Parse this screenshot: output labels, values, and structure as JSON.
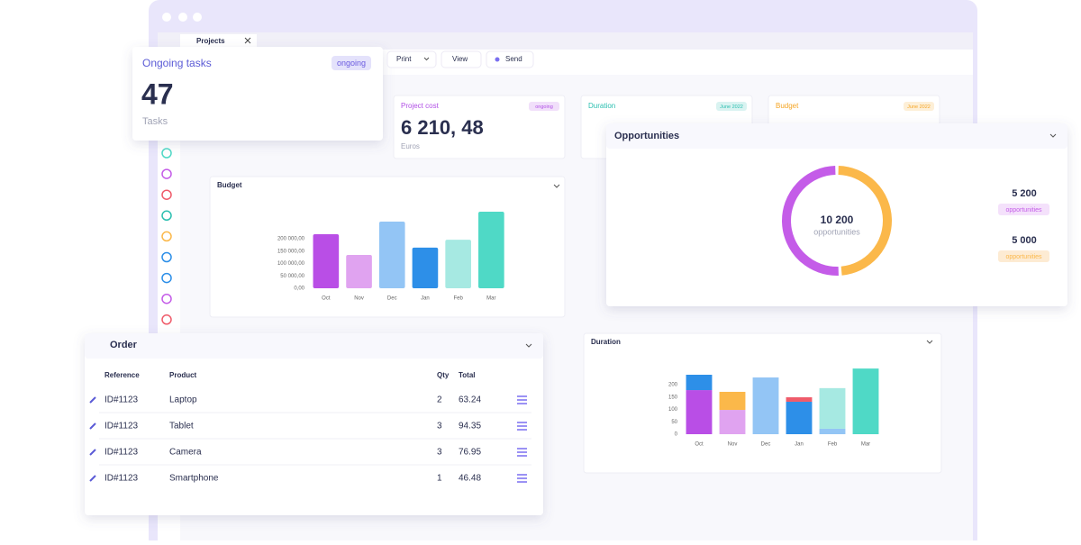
{
  "window": {
    "tab": "Projects"
  },
  "toolbar": {
    "buttons": [
      "Print",
      "View",
      "Send"
    ]
  },
  "ongoing_tasks": {
    "title": "Ongoing tasks",
    "badge": "ongoing",
    "value": 47,
    "unit": "Tasks"
  },
  "kpis": [
    {
      "title": "Project cost",
      "badge": "ongoing",
      "value": "6 210, 48",
      "unit": "Euros",
      "color": "#b14fe6"
    },
    {
      "title": "Duration",
      "badge": "June 2022",
      "color": "#2bbfb0"
    },
    {
      "title": "Budget",
      "badge": "June 2022",
      "color": "#f5a524"
    }
  ],
  "budget_chart": {
    "type": "bar",
    "title": "Budget",
    "categories": [
      "Oct",
      "Nov",
      "Dec",
      "Jan",
      "Feb",
      "Mar"
    ],
    "values": [
      218000,
      134500,
      269000,
      164000,
      196000,
      309000
    ],
    "colors": [
      "#b94ee6",
      "#e0a3f0",
      "#93c5f5",
      "#2d8fe8",
      "#a6e9e2",
      "#4fd9c6"
    ],
    "ylim": [
      0,
      320000
    ],
    "yticks": [
      {
        "value": 0,
        "label": "0,00"
      },
      {
        "value": 50000,
        "label": "50 000,00"
      },
      {
        "value": 100000,
        "label": "100 000,00"
      },
      {
        "value": 150000,
        "label": "150 000,00"
      },
      {
        "value": 200000,
        "label": "200 000,00"
      }
    ]
  },
  "duration_chart": {
    "type": "stacked_bar",
    "title": "Duration",
    "categories": [
      "Oct",
      "Nov",
      "Dec",
      "Jan",
      "Feb",
      "Mar"
    ],
    "series": [
      {
        "colors": [
          "#b94ee6",
          "#e0a3f0",
          "#93c5f5",
          "#2d8fe8",
          "#93c5f5",
          "#4fd9c6"
        ],
        "values": [
          178,
          98,
          229,
          131,
          22,
          265
        ]
      },
      {
        "colors": [
          "#2d8fe8",
          "#fbb84a",
          "#93c5f5",
          "#ef5b6a",
          "#a6e9e2",
          "#4fd9c6"
        ],
        "values": [
          62,
          73,
          null,
          18,
          164,
          null
        ]
      }
    ],
    "ylim": [
      0,
      280
    ],
    "yticks": [
      0,
      50,
      100,
      150,
      200
    ]
  },
  "opportunities": {
    "type": "donut",
    "title": "Opportunities",
    "total": {
      "value": 10200,
      "label": "10 200"
    },
    "caption": "opportunities",
    "values": [
      5200,
      5000
    ],
    "value_labels": [
      "5 200",
      "5 000"
    ],
    "labels": [
      "opportunities",
      "opportunities"
    ],
    "colors": [
      "#c45ce8",
      "#fbb84a"
    ],
    "badge_colors": [
      "#f4e1fb",
      "#fdebd3"
    ]
  },
  "order": {
    "title": "Order",
    "columns": [
      "Reference",
      "Product",
      "Qty",
      "Total"
    ],
    "rows": [
      [
        "ID#1123",
        "Laptop",
        2,
        63.24
      ],
      [
        "ID#1123",
        "Tablet",
        3,
        94.35
      ],
      [
        "ID#1123",
        "Camera",
        3,
        76.95
      ],
      [
        "ID#1123",
        "Smartphone",
        1,
        46.48
      ]
    ]
  }
}
